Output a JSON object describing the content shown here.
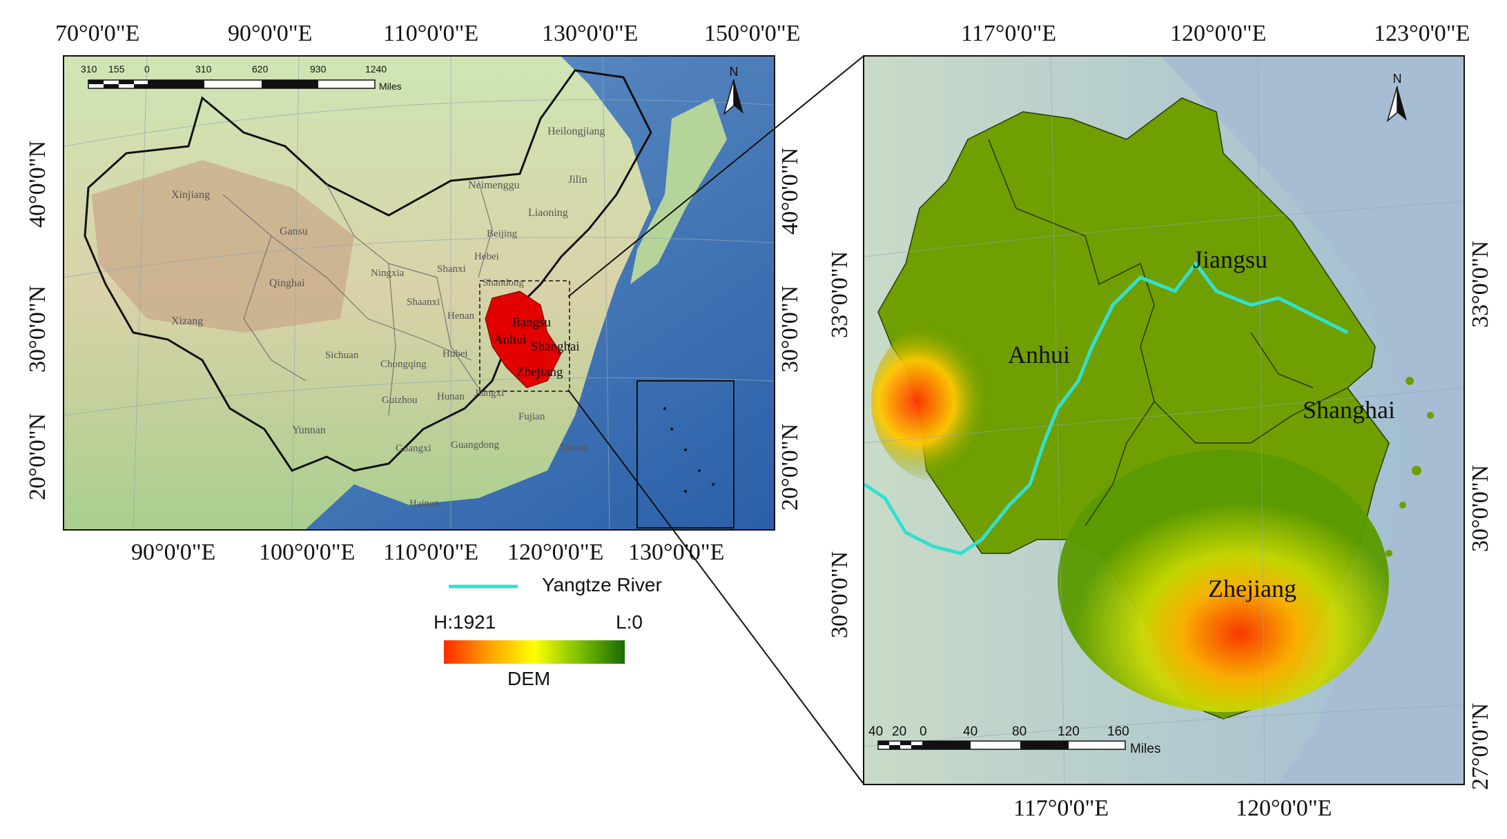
{
  "left_map": {
    "top_lon_labels": [
      "70°0'0\"E",
      "90°0'0\"E",
      "110°0'0\"E",
      "130°0'0\"E",
      "150°0'0\"E"
    ],
    "bottom_lon_labels": [
      "90°0'0\"E",
      "100°0'0\"E",
      "110°0'0\"E",
      "120°0'0\"E",
      "130°0'0\"E"
    ],
    "left_lat_labels": [
      "40°0'0\"N",
      "30°0'0\"N",
      "20°0'0\"N"
    ],
    "right_lat_labels": [
      "40°0'0\"N",
      "30°0'0\"N",
      "20°0'0\"N"
    ],
    "scale_ticks": [
      "310",
      "155",
      "0",
      "310",
      "620",
      "930",
      "1240"
    ],
    "scale_unit": "Miles",
    "north": "N",
    "provinces": [
      "Heilongjiang",
      "Jilin",
      "Neimenggu",
      "Liaoning",
      "Xinjiang",
      "Gansu",
      "Beijing",
      "Hebei",
      "Ningxia",
      "Shanxi",
      "Qinghai",
      "Shandong",
      "Shaanxi",
      "Henan",
      "Xizang",
      "Sichuan",
      "Hubei",
      "Chongqing",
      "Guizhou",
      "Hunan",
      "Jiangxi",
      "Yunnan",
      "Guangxi",
      "Guangdong",
      "Fujian",
      "Taiwan",
      "Hainan"
    ],
    "study_labels": [
      "Jiangsu",
      "Anhui",
      "Shanghai",
      "Zhejiang"
    ]
  },
  "legend": {
    "river_label": "Yangtze River",
    "dem_high": "H:1921",
    "dem_low": "L:0",
    "dem_title": "DEM",
    "colors": {
      "high": "#ff2a00",
      "mid": "#ffff00",
      "low": "#1a6b00",
      "river": "#33e0d0",
      "study_area": "#e30000"
    }
  },
  "right_map": {
    "top_lon_labels": [
      "117°0'0\"E",
      "120°0'0\"E",
      "123°0'0\"E"
    ],
    "bottom_lon_labels": [
      "117°0'0\"E",
      "120°0'0\"E"
    ],
    "left_lat_labels": [
      "33°0'0\"N",
      "30°0'0\"N"
    ],
    "right_lat_labels": [
      "33°0'0\"N",
      "30°0'0\"N",
      "27°0'0\"N"
    ],
    "scale_ticks": [
      "40",
      "20",
      "0",
      "40",
      "80",
      "120",
      "160"
    ],
    "scale_unit": "Miles",
    "north": "N",
    "provinces": [
      "Jiangsu",
      "Anhui",
      "Shanghai",
      "Zhejiang"
    ]
  }
}
